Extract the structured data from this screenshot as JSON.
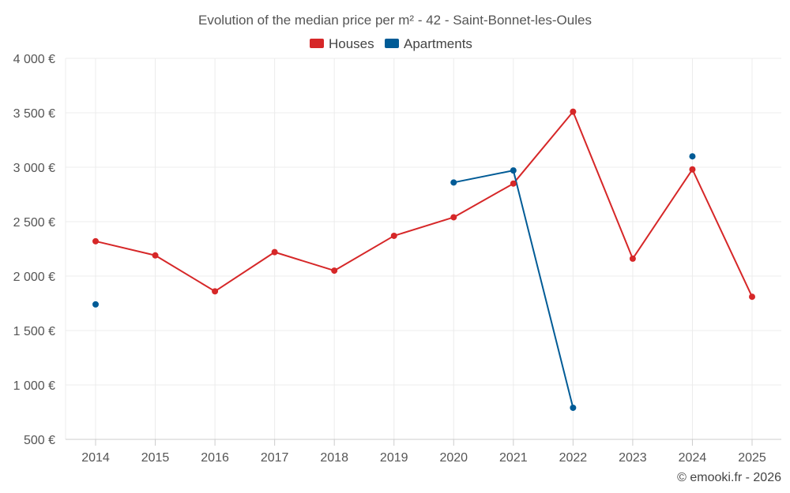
{
  "chart_data": {
    "type": "line",
    "title": "Evolution of the median price per m² - 42 - Saint-Bonnet-les-Oules",
    "xlabel": "",
    "ylabel": "",
    "categories": [
      "2014",
      "2015",
      "2016",
      "2017",
      "2018",
      "2019",
      "2020",
      "2021",
      "2022",
      "2023",
      "2024",
      "2025"
    ],
    "ylim": [
      500,
      4000
    ],
    "yticks": [
      500,
      1000,
      1500,
      2000,
      2500,
      3000,
      3500,
      4000
    ],
    "ytick_labels": [
      "500 €",
      "1 000 €",
      "1 500 €",
      "2 000 €",
      "2 500 €",
      "3 000 €",
      "3 500 €",
      "4 000 €"
    ],
    "grid": true,
    "legend_position": "top-center",
    "series": [
      {
        "name": "Houses",
        "color": "#d62728",
        "values": [
          2320,
          2190,
          1860,
          2220,
          2050,
          2370,
          2540,
          2850,
          3510,
          2160,
          2980,
          1810
        ]
      },
      {
        "name": "Apartments",
        "color": "#005b96",
        "values": [
          1740,
          null,
          null,
          null,
          null,
          null,
          2860,
          2970,
          790,
          null,
          3100,
          null
        ]
      }
    ],
    "credit": "© emooki.fr - 2026"
  }
}
